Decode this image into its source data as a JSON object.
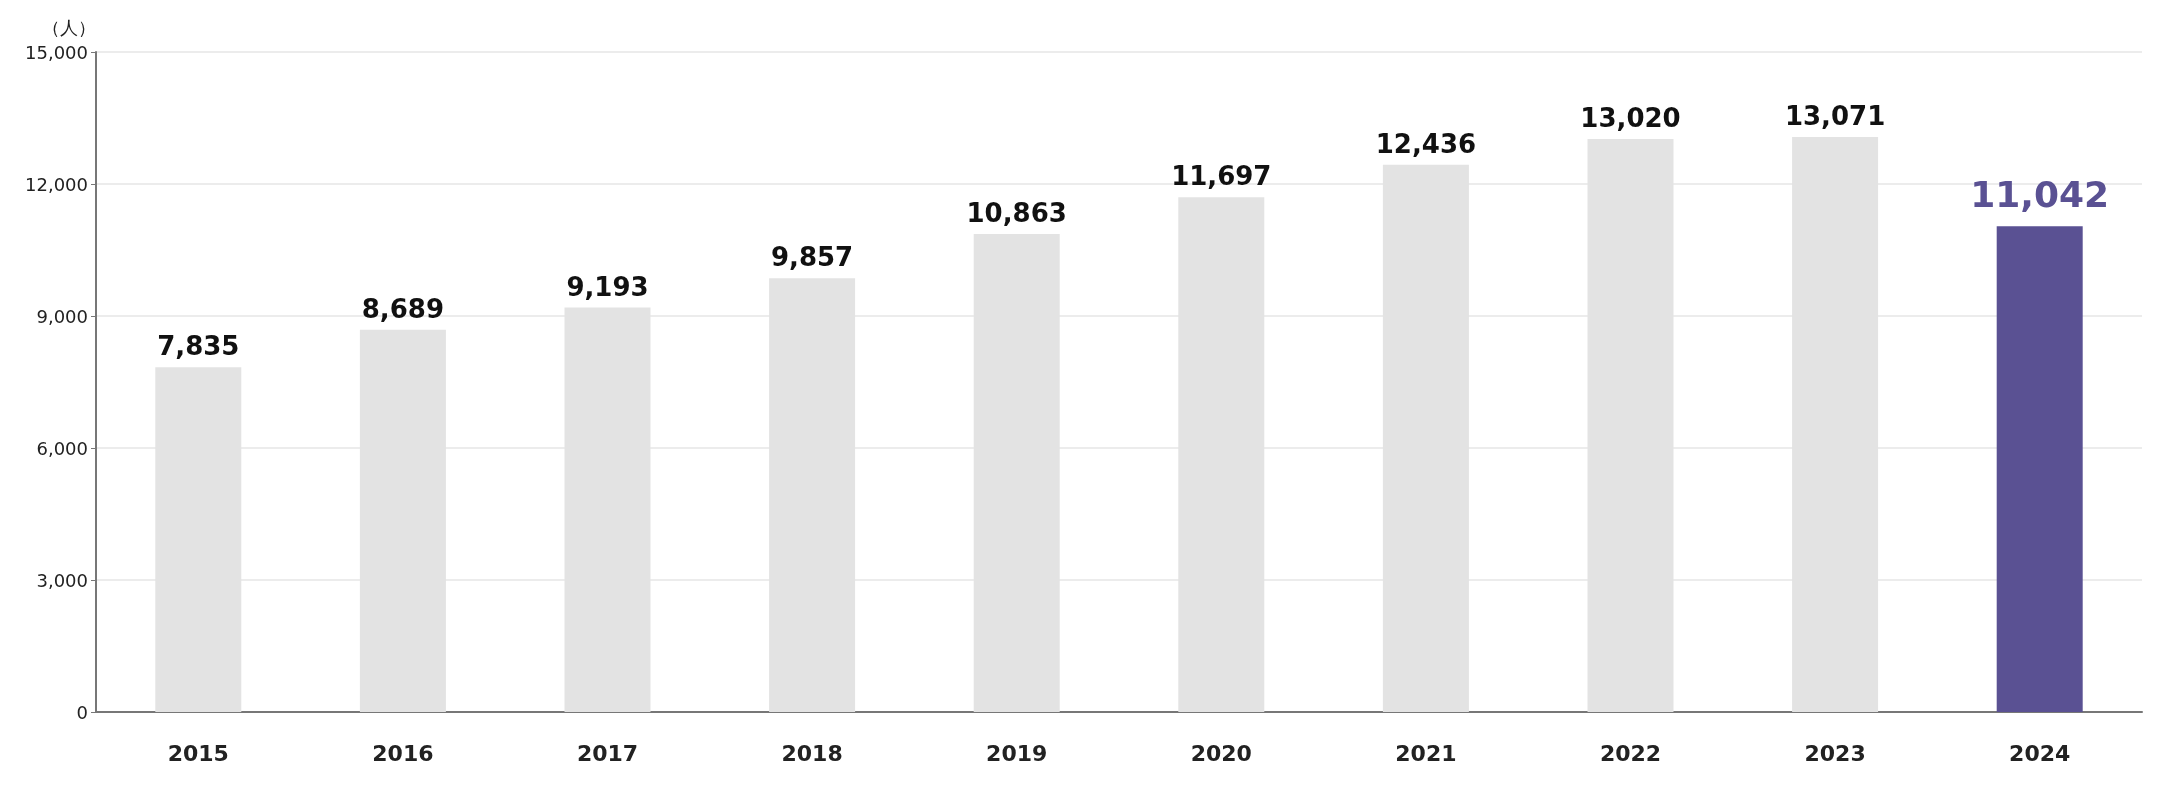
{
  "chart_data": {
    "type": "bar",
    "ylabel": "（人）",
    "categories": [
      "2015",
      "2016",
      "2017",
      "2018",
      "2019",
      "2020",
      "2021",
      "2022",
      "2023",
      "2024"
    ],
    "values": [
      7835,
      8689,
      9193,
      9857,
      10863,
      11697,
      12436,
      13020,
      13071,
      11042
    ],
    "colors": [
      "#e3e3e3",
      "#e3e3e3",
      "#e3e3e3",
      "#e3e3e3",
      "#e3e3e3",
      "#e3e3e3",
      "#e3e3e3",
      "#e3e3e3",
      "#e3e3e3",
      "#5a5193"
    ],
    "value_labels": [
      "7,835",
      "8,689",
      "9,193",
      "9,857",
      "10,863",
      "11,697",
      "12,436",
      "13,020",
      "13,071",
      "11,042"
    ],
    "ylim": [
      0,
      15000
    ],
    "yticks": [
      0,
      {
        "value": 3000,
        "label": "3,000"
      },
      {
        "value": 6000,
        "label": "6,000"
      },
      {
        "value": 9000,
        "label": "9,000"
      },
      {
        "value": 12000,
        "label": "12,000"
      },
      {
        "value": 15000,
        "label": "15,000"
      }
    ],
    "grid": "y"
  }
}
